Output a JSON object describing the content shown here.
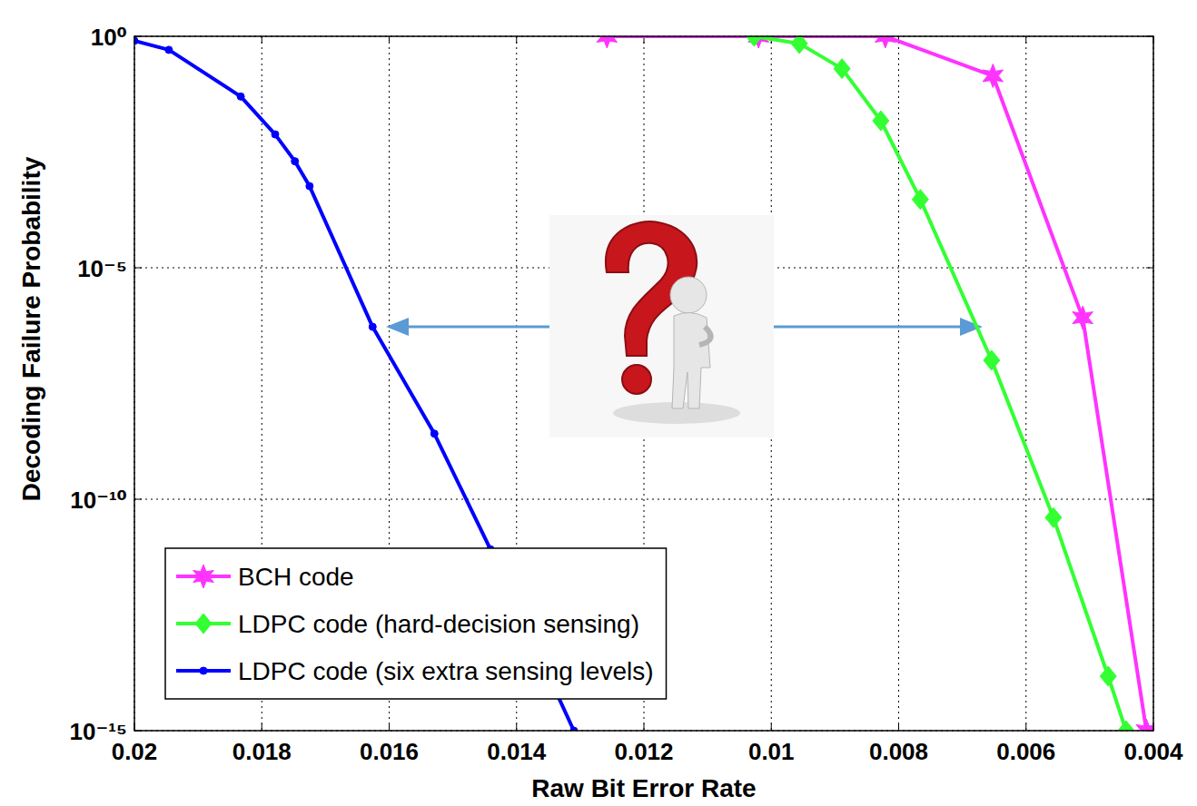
{
  "chart_data": {
    "type": "line",
    "x_label": "Raw Bit Error Rate",
    "y_label": "Decoding Failure Probability",
    "log": "y",
    "grid": true,
    "legend": "lower left",
    "xlim": [
      0.02,
      0.004
    ],
    "xticks": [
      0.02,
      0.018,
      0.016,
      0.014,
      0.012,
      0.01,
      0.008,
      0.006,
      0.004
    ],
    "ylim": [
      1e-15,
      1
    ],
    "yticks": [
      {
        "value": 1,
        "label": "10⁰"
      },
      {
        "value": 1e-05,
        "label": "10⁻⁵"
      },
      {
        "value": 1e-10,
        "label": "10⁻¹⁰"
      },
      {
        "value": 1e-15,
        "label": "10⁻¹⁵"
      }
    ],
    "series": [
      {
        "name": "BCH code",
        "color": "#ff33ff",
        "marker": "star",
        "x": [
          0.01258,
          0.0102,
          0.00821,
          0.00652,
          0.00511,
          0.00411
        ],
        "values": [
          1,
          1,
          1,
          0.14,
          8.3e-07,
          1e-15
        ]
      },
      {
        "name": "LDPC code (hard-decision sensing)",
        "color": "#33ff33",
        "marker": "diamond",
        "x": [
          0.01027,
          0.00956,
          0.00889,
          0.00828,
          0.00766,
          0.00654,
          0.00557,
          0.00471,
          0.00443
        ],
        "values": [
          1,
          0.7,
          0.2,
          0.015,
          0.0003,
          1e-07,
          4e-11,
          1.5e-14,
          1e-15
        ]
      },
      {
        "name": "LDPC code (six extra sensing levels)",
        "color": "#0000ff",
        "marker": "point",
        "x": [
          0.02,
          0.01946,
          0.01833,
          0.01779,
          0.01748,
          0.01725,
          0.01626,
          0.01529,
          0.01441,
          0.0131
        ],
        "values": [
          0.8,
          0.51,
          0.05,
          0.0076,
          0.002,
          0.00058,
          5.3e-07,
          2.6e-09,
          8.3e-12,
          1e-15
        ]
      }
    ]
  }
}
